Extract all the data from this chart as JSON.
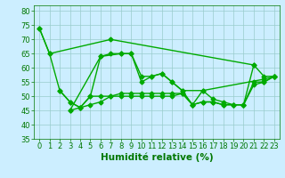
{
  "title": "",
  "xlabel": "Humidité relative (%)",
  "ylabel": "",
  "xlim": [
    -0.5,
    23.5
  ],
  "ylim": [
    35,
    82
  ],
  "yticks": [
    35,
    40,
    45,
    50,
    55,
    60,
    65,
    70,
    75,
    80
  ],
  "xticks": [
    0,
    1,
    2,
    3,
    4,
    5,
    6,
    7,
    8,
    9,
    10,
    11,
    12,
    13,
    14,
    15,
    16,
    17,
    18,
    19,
    20,
    21,
    22,
    23
  ],
  "background_color": "#cceeff",
  "grid_color": "#99cccc",
  "line_color": "#00aa00",
  "marker": "D",
  "markersize": 2.5,
  "linewidth": 1.0,
  "series": [
    [
      74,
      65,
      null,
      null,
      null,
      null,
      null,
      70,
      null,
      null,
      null,
      null,
      null,
      null,
      null,
      null,
      null,
      null,
      null,
      null,
      null,
      61,
      null,
      null
    ],
    [
      null,
      null,
      null,
      45,
      null,
      null,
      64,
      null,
      65,
      65,
      57,
      57,
      58,
      55,
      52,
      null,
      52,
      null,
      null,
      null,
      null,
      null,
      56,
      57
    ],
    [
      74,
      65,
      52,
      48,
      46,
      50,
      64,
      65,
      65,
      65,
      55,
      57,
      58,
      55,
      52,
      47,
      52,
      49,
      48,
      47,
      47,
      61,
      57,
      57
    ],
    [
      null,
      null,
      52,
      48,
      46,
      50,
      50,
      50,
      51,
      51,
      51,
      51,
      51,
      51,
      51,
      47,
      48,
      48,
      47,
      47,
      47,
      55,
      55,
      57
    ],
    [
      null,
      null,
      null,
      45,
      46,
      47,
      48,
      50,
      50,
      50,
      50,
      50,
      50,
      50,
      51,
      47,
      48,
      48,
      47,
      47,
      47,
      54,
      55,
      57
    ]
  ],
  "font_color": "#007700",
  "tick_fontsize": 6,
  "label_fontsize": 7.5
}
